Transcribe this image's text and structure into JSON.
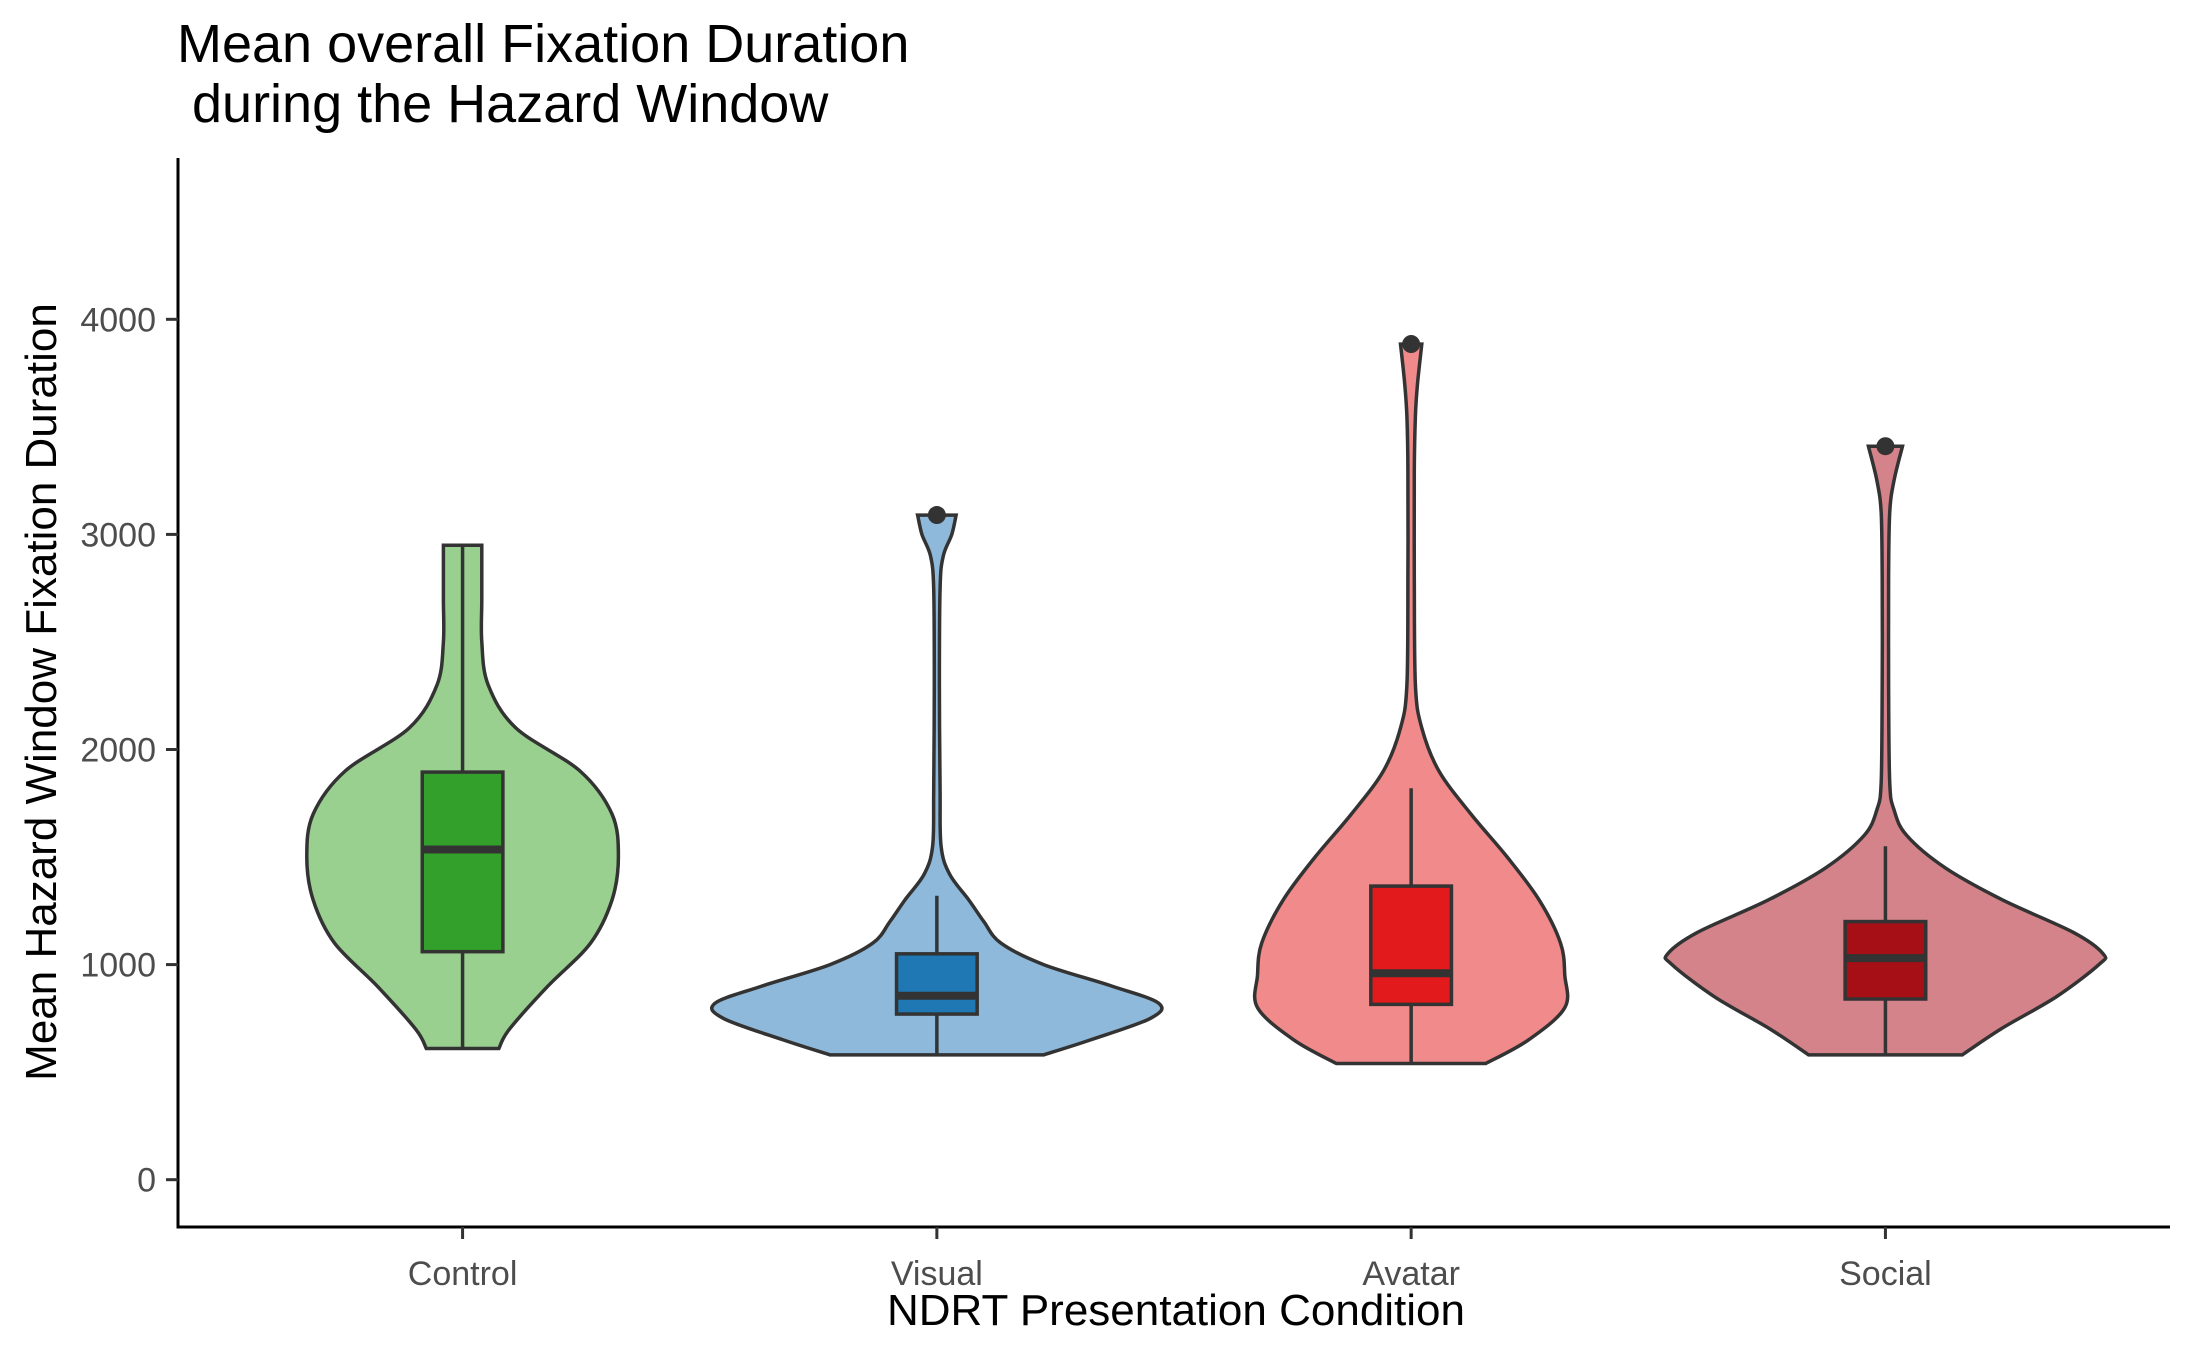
{
  "chart_data": {
    "type": "violin",
    "title_lines": [
      "Mean overall Fixation Duration",
      " during the Hazard Window"
    ],
    "xlabel": "NDRT Presentation Condition",
    "ylabel": "Mean Hazard Window Fixation Duration",
    "ylim": [
      -220,
      4750
    ],
    "yticks": [
      0,
      1000,
      2000,
      3000,
      4000
    ],
    "grid": false,
    "legend": "none",
    "categories": [
      "Control",
      "Visual",
      "Avatar",
      "Social"
    ],
    "series": [
      {
        "category": "Control",
        "violin_color": "#99d08f",
        "box_color": "#33a02c",
        "box": {
          "min": 610,
          "q1": 1060,
          "median": 1535,
          "q3": 1895,
          "max": 2950
        },
        "outliers": [],
        "density": [
          [
            610,
            0.17
          ],
          [
            700,
            0.22
          ],
          [
            900,
            0.4
          ],
          [
            1100,
            0.6
          ],
          [
            1300,
            0.7
          ],
          [
            1500,
            0.73
          ],
          [
            1700,
            0.7
          ],
          [
            1900,
            0.55
          ],
          [
            2100,
            0.25
          ],
          [
            2300,
            0.12
          ],
          [
            2500,
            0.09
          ],
          [
            2700,
            0.09
          ],
          [
            2950,
            0.09
          ]
        ]
      },
      {
        "category": "Visual",
        "violin_color": "#8fb9da",
        "box_color": "#1f78b4",
        "box": {
          "min": 580,
          "q1": 770,
          "median": 855,
          "q3": 1050,
          "max": 1320
        },
        "outliers": [
          3090
        ],
        "density": [
          [
            580,
            0.5
          ],
          [
            650,
            0.72
          ],
          [
            750,
            1.0
          ],
          [
            820,
            1.04
          ],
          [
            900,
            0.82
          ],
          [
            1000,
            0.5
          ],
          [
            1100,
            0.3
          ],
          [
            1200,
            0.22
          ],
          [
            1300,
            0.15
          ],
          [
            1420,
            0.06
          ],
          [
            1550,
            0.02
          ],
          [
            1800,
            0.015
          ],
          [
            2300,
            0.012
          ],
          [
            2750,
            0.015
          ],
          [
            2900,
            0.03
          ],
          [
            3000,
            0.07
          ],
          [
            3090,
            0.09
          ]
        ]
      },
      {
        "category": "Avatar",
        "violin_color": "#f18a8a",
        "box_color": "#e31a1c",
        "box": {
          "min": 540,
          "q1": 815,
          "median": 960,
          "q3": 1365,
          "max": 1820
        },
        "outliers": [
          3885
        ],
        "density": [
          [
            540,
            0.35
          ],
          [
            650,
            0.55
          ],
          [
            800,
            0.72
          ],
          [
            950,
            0.72
          ],
          [
            1100,
            0.7
          ],
          [
            1300,
            0.6
          ],
          [
            1500,
            0.45
          ],
          [
            1700,
            0.28
          ],
          [
            1900,
            0.13
          ],
          [
            2100,
            0.05
          ],
          [
            2300,
            0.02
          ],
          [
            2800,
            0.015
          ],
          [
            3300,
            0.015
          ],
          [
            3550,
            0.02
          ],
          [
            3700,
            0.03
          ],
          [
            3885,
            0.05
          ]
        ]
      },
      {
        "category": "Social",
        "violin_color": "#d4838a",
        "box_color": "#a50f15",
        "box": {
          "min": 580,
          "q1": 840,
          "median": 1030,
          "q3": 1200,
          "max": 1550
        },
        "outliers": [
          3410
        ],
        "density": [
          [
            580,
            0.36
          ],
          [
            700,
            0.54
          ],
          [
            850,
            0.8
          ],
          [
            1000,
            1.0
          ],
          [
            1050,
            1.02
          ],
          [
            1150,
            0.88
          ],
          [
            1300,
            0.55
          ],
          [
            1450,
            0.28
          ],
          [
            1600,
            0.1
          ],
          [
            1720,
            0.04
          ],
          [
            1850,
            0.02
          ],
          [
            2300,
            0.015
          ],
          [
            2800,
            0.015
          ],
          [
            3100,
            0.02
          ],
          [
            3250,
            0.04
          ],
          [
            3410,
            0.08
          ]
        ]
      }
    ]
  }
}
